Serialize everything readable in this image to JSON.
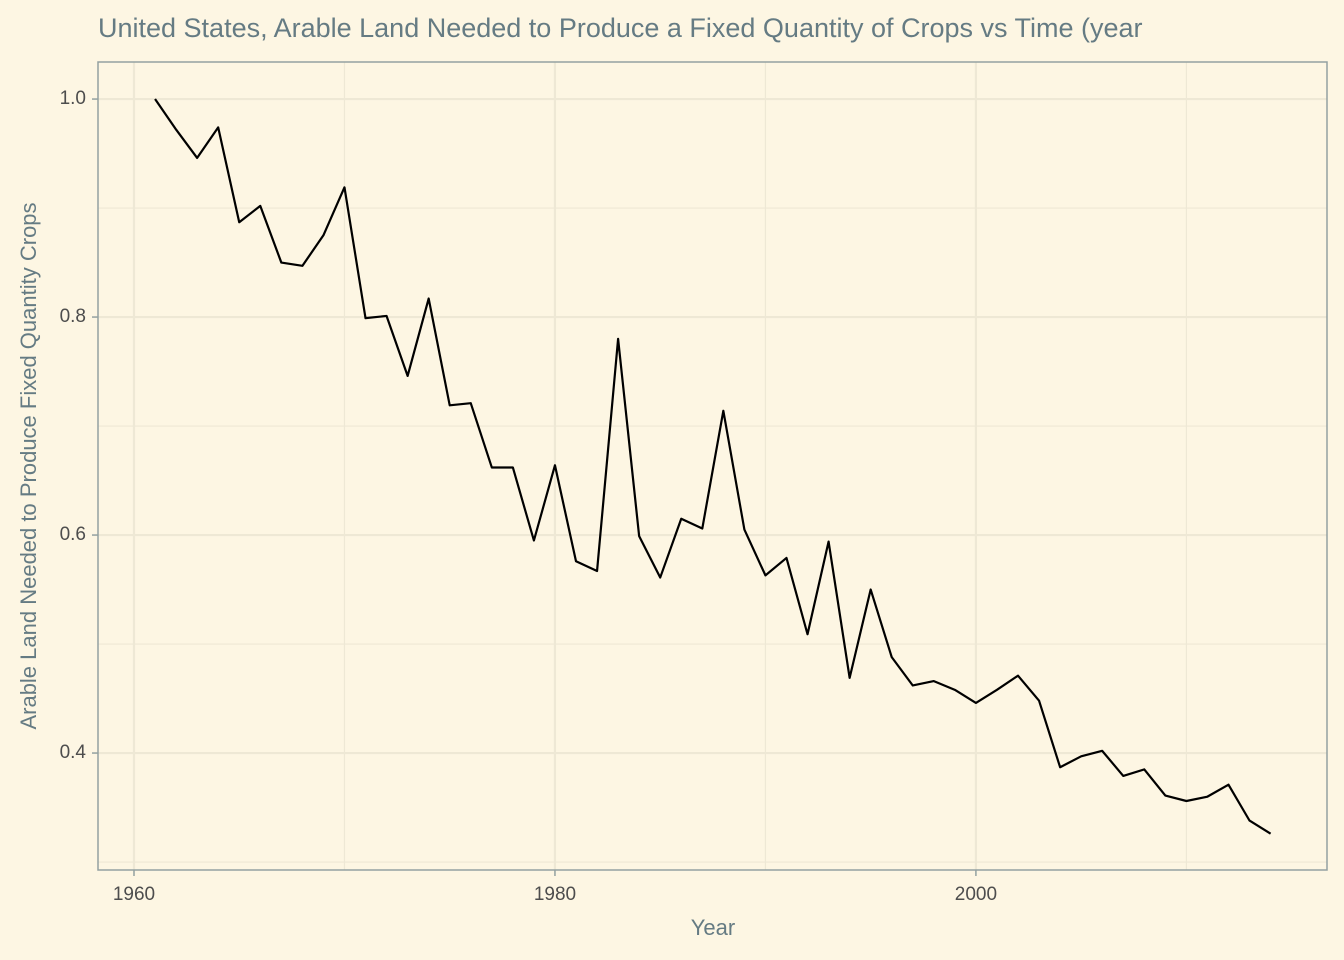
{
  "chart_data": {
    "type": "line",
    "title": "United States, Arable Land Needed to Produce a Fixed Quantity of Crops vs Time (year",
    "x_label": "Year",
    "y_label": "Arable Land Needed to Produce Fixed Quantity Crops",
    "x": [
      1961,
      1962,
      1963,
      1964,
      1965,
      1966,
      1967,
      1968,
      1969,
      1970,
      1971,
      1972,
      1973,
      1974,
      1975,
      1976,
      1977,
      1978,
      1979,
      1980,
      1981,
      1982,
      1983,
      1984,
      1985,
      1986,
      1987,
      1988,
      1989,
      1990,
      1991,
      1992,
      1993,
      1994,
      1995,
      1996,
      1997,
      1998,
      1999,
      2000,
      2001,
      2002,
      2003,
      2004,
      2005,
      2006,
      2007,
      2008,
      2009,
      2010,
      2011,
      2012,
      2013,
      2014
    ],
    "series": [
      {
        "color": "#000000",
        "values": [
          1.0,
          0.972,
          0.946,
          0.974,
          0.887,
          0.902,
          0.85,
          0.847,
          0.875,
          0.919,
          0.799,
          0.801,
          0.746,
          0.817,
          0.719,
          0.721,
          0.662,
          0.662,
          0.595,
          0.664,
          0.576,
          0.567,
          0.78,
          0.599,
          0.561,
          0.615,
          0.606,
          0.714,
          0.605,
          0.563,
          0.579,
          0.509,
          0.594,
          0.469,
          0.55,
          0.488,
          0.462,
          0.466,
          0.458,
          0.446,
          0.458,
          0.471,
          0.448,
          0.387,
          0.397,
          0.402,
          0.379,
          0.385,
          0.361,
          0.356,
          0.36,
          0.371,
          0.338,
          0.326
        ]
      }
    ],
    "xlim": [
      1958.29,
      2016.68
    ],
    "ylim": [
      0.2927,
      1.034
    ],
    "xticks": [
      1960,
      1980,
      2000
    ],
    "yticks": [
      0.4,
      0.6,
      0.8,
      {
        "value": 1,
        "label": "1.0"
      }
    ],
    "x_minor_grid": [
      1970,
      1990,
      2010
    ],
    "y_minor_grid": [
      0.3,
      0.5,
      0.7,
      0.9
    ],
    "grid": true
  }
}
